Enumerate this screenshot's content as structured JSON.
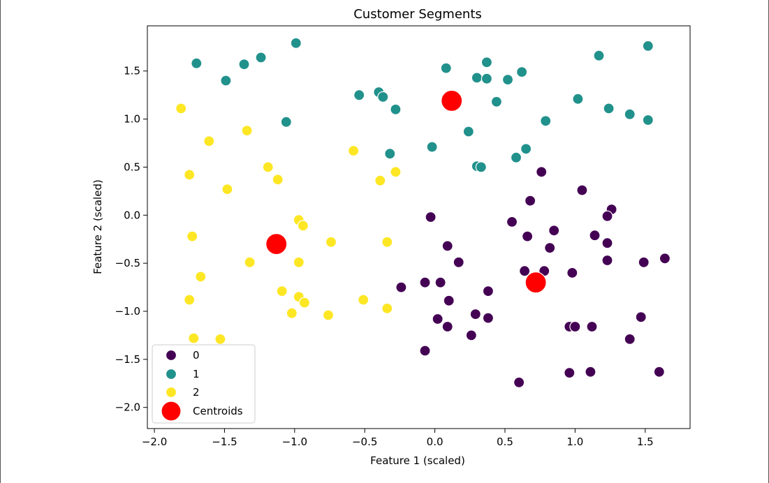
{
  "chart_data": {
    "type": "scatter",
    "title": "Customer Segments",
    "xlabel": "Feature 1 (scaled)",
    "ylabel": "Feature 2 (scaled)",
    "xlim": [
      -2.05,
      1.82
    ],
    "ylim": [
      -2.22,
      1.97
    ],
    "xticks": [
      -2.0,
      -1.5,
      -1.0,
      -0.5,
      0.0,
      0.5,
      1.0,
      1.5
    ],
    "xtick_labels": [
      "−2.0",
      "−1.5",
      "−1.0",
      "−0.5",
      "0.0",
      "0.5",
      "1.0",
      "1.5"
    ],
    "yticks": [
      1.5,
      1.0,
      0.5,
      0.0,
      -0.5,
      -1.0,
      -1.5,
      -2.0
    ],
    "ytick_labels": [
      "1.5",
      "1.0",
      "0.5",
      "0.0",
      "−0.5",
      "−1.0",
      "−1.5",
      "−2.0"
    ],
    "grid": false,
    "legend_position": "lower-left",
    "series": [
      {
        "name": "0",
        "color": "#440154",
        "points": [
          [
            -0.03,
            -0.02
          ],
          [
            0.09,
            -0.32
          ],
          [
            0.17,
            -0.49
          ],
          [
            -0.24,
            -0.75
          ],
          [
            -0.07,
            -0.7
          ],
          [
            0.04,
            -0.7
          ],
          [
            0.1,
            -0.89
          ],
          [
            0.38,
            -0.79
          ],
          [
            0.02,
            -1.08
          ],
          [
            0.09,
            -1.16
          ],
          [
            0.29,
            -1.03
          ],
          [
            0.38,
            -1.07
          ],
          [
            0.26,
            -1.25
          ],
          [
            -0.07,
            -1.41
          ],
          [
            0.6,
            -1.74
          ],
          [
            0.55,
            -0.07
          ],
          [
            0.66,
            -0.22
          ],
          [
            0.68,
            0.15
          ],
          [
            0.76,
            0.45
          ],
          [
            0.85,
            -0.16
          ],
          [
            0.82,
            -0.34
          ],
          [
            0.64,
            -0.58
          ],
          [
            0.78,
            -0.58
          ],
          [
            0.98,
            -0.6
          ],
          [
            1.05,
            0.26
          ],
          [
            1.26,
            0.06
          ],
          [
            1.23,
            -0.01
          ],
          [
            1.14,
            -0.21
          ],
          [
            1.23,
            -0.29
          ],
          [
            1.23,
            -0.47
          ],
          [
            1.49,
            -0.49
          ],
          [
            1.64,
            -0.45
          ],
          [
            0.96,
            -1.16
          ],
          [
            1.0,
            -1.16
          ],
          [
            1.12,
            -1.16
          ],
          [
            1.47,
            -1.06
          ],
          [
            1.39,
            -1.29
          ],
          [
            0.96,
            -1.64
          ],
          [
            1.11,
            -1.63
          ],
          [
            1.6,
            -1.63
          ]
        ]
      },
      {
        "name": "1",
        "color": "#21918c",
        "points": [
          [
            -1.7,
            1.58
          ],
          [
            -1.36,
            1.57
          ],
          [
            -1.24,
            1.64
          ],
          [
            -0.99,
            1.79
          ],
          [
            -1.49,
            1.4
          ],
          [
            -1.06,
            0.97
          ],
          [
            -0.54,
            1.25
          ],
          [
            -0.4,
            1.28
          ],
          [
            -0.37,
            1.23
          ],
          [
            -0.28,
            1.1
          ],
          [
            -0.32,
            0.64
          ],
          [
            0.08,
            1.53
          ],
          [
            0.37,
            1.59
          ],
          [
            0.3,
            1.43
          ],
          [
            0.37,
            1.42
          ],
          [
            0.52,
            1.41
          ],
          [
            0.62,
            1.49
          ],
          [
            0.44,
            1.18
          ],
          [
            0.24,
            0.87
          ],
          [
            -0.02,
            0.71
          ],
          [
            0.3,
            0.51
          ],
          [
            0.33,
            0.5
          ],
          [
            0.58,
            0.6
          ],
          [
            0.65,
            0.69
          ],
          [
            0.79,
            0.98
          ],
          [
            1.02,
            1.21
          ],
          [
            1.17,
            1.66
          ],
          [
            1.52,
            1.76
          ],
          [
            1.24,
            1.11
          ],
          [
            1.39,
            1.05
          ],
          [
            1.52,
            0.99
          ]
        ]
      },
      {
        "name": "2",
        "color": "#fde725",
        "points": [
          [
            -1.81,
            1.11
          ],
          [
            -1.34,
            0.88
          ],
          [
            -1.61,
            0.77
          ],
          [
            -1.75,
            0.42
          ],
          [
            -1.48,
            0.27
          ],
          [
            -1.19,
            0.5
          ],
          [
            -1.12,
            0.37
          ],
          [
            -0.58,
            0.67
          ],
          [
            -0.28,
            0.45
          ],
          [
            -0.39,
            0.36
          ],
          [
            -0.97,
            -0.05
          ],
          [
            -0.94,
            -0.11
          ],
          [
            -1.73,
            -0.22
          ],
          [
            -0.74,
            -0.28
          ],
          [
            -0.34,
            -0.28
          ],
          [
            -1.32,
            -0.49
          ],
          [
            -0.97,
            -0.49
          ],
          [
            -1.67,
            -0.64
          ],
          [
            -1.09,
            -0.79
          ],
          [
            -0.97,
            -0.85
          ],
          [
            -0.93,
            -0.91
          ],
          [
            -1.75,
            -0.88
          ],
          [
            -0.51,
            -0.88
          ],
          [
            -0.34,
            -0.97
          ],
          [
            -1.02,
            -1.02
          ],
          [
            -0.76,
            -1.04
          ],
          [
            -1.72,
            -1.28
          ],
          [
            -1.53,
            -1.29
          ]
        ]
      }
    ],
    "centroids": {
      "name": "Centroids",
      "color": "#ff0000",
      "points": [
        [
          0.12,
          1.19
        ],
        [
          -1.13,
          -0.3
        ],
        [
          0.72,
          -0.7
        ]
      ]
    },
    "legend": [
      {
        "label": "0",
        "color": "#440154"
      },
      {
        "label": "1",
        "color": "#21918c"
      },
      {
        "label": "2",
        "color": "#fde725"
      },
      {
        "label": "Centroids",
        "color": "#ff0000"
      }
    ]
  }
}
